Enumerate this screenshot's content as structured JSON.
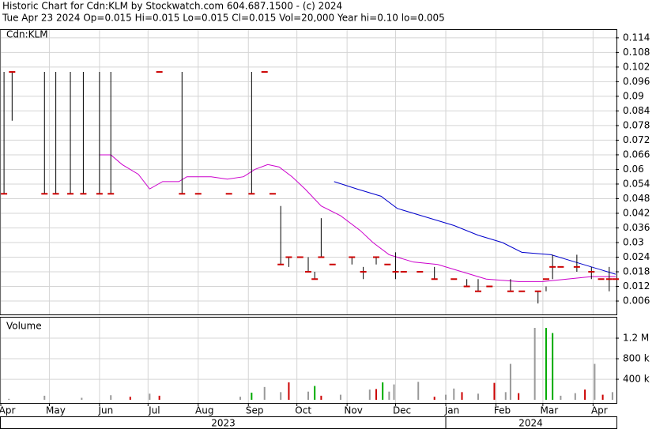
{
  "header": {
    "title": "Historic Chart for Cdn:KLM by Stockwatch.com 604.687.1500 - (c) 2024",
    "quote": "Tue Apr 23 2024  Op=0.015  Hi=0.015  Lo=0.015  Cl=0.015  Vol=20,000  Year hi=0.10  lo=0.005"
  },
  "chart_data": [
    {
      "type": "ohlc",
      "label": "Cdn:KLM",
      "color": "#cc0000",
      "bar_color": "#000000",
      "xlim": [
        0,
        380
      ],
      "ylim": [
        0.0005,
        0.1172
      ],
      "yticks": [
        0.114,
        0.108,
        0.102,
        0.096,
        0.09,
        0.084,
        0.078,
        0.072,
        0.066,
        0.06,
        0.054,
        0.048,
        0.042,
        0.036,
        0.03,
        0.024,
        0.018,
        0.012,
        0.006
      ],
      "x": [
        2,
        7,
        27,
        34,
        43,
        51,
        61,
        68,
        98,
        112,
        122,
        141,
        155,
        163,
        168,
        173,
        178,
        185,
        190,
        194,
        198,
        205,
        217,
        224,
        232,
        239,
        244,
        249,
        259,
        268,
        280,
        288,
        295,
        302,
        315,
        322,
        332,
        337,
        341,
        346,
        356,
        365,
        371,
        376,
        380
      ],
      "high": [
        0.1,
        0.1,
        0.1,
        0.1,
        0.1,
        0.1,
        0.1,
        0.1,
        0.1,
        0.1,
        0.05,
        0.05,
        0.1,
        0.1,
        0.05,
        0.045,
        0.024,
        0.024,
        0.024,
        0.018,
        0.04,
        0.021,
        0.024,
        0.02,
        0.024,
        0.021,
        0.026,
        0.018,
        0.018,
        0.02,
        0.015,
        0.015,
        0.015,
        0.012,
        0.015,
        0.01,
        0.01,
        0.012,
        0.025,
        0.02,
        0.025,
        0.02,
        0.015,
        0.02,
        0.015
      ],
      "low": [
        0.05,
        0.08,
        0.05,
        0.05,
        0.05,
        0.05,
        0.05,
        0.05,
        0.1,
        0.05,
        0.05,
        0.05,
        0.05,
        0.1,
        0.05,
        0.021,
        0.02,
        0.024,
        0.018,
        0.015,
        0.024,
        0.021,
        0.021,
        0.015,
        0.021,
        0.021,
        0.015,
        0.018,
        0.018,
        0.015,
        0.015,
        0.012,
        0.01,
        0.012,
        0.01,
        0.01,
        0.005,
        0.01,
        0.015,
        0.02,
        0.018,
        0.015,
        0.015,
        0.01,
        0.015
      ],
      "close": [
        0.05,
        0.1,
        0.05,
        0.05,
        0.05,
        0.05,
        0.05,
        0.05,
        0.1,
        0.05,
        0.05,
        0.05,
        0.05,
        0.1,
        0.05,
        0.021,
        0.024,
        0.024,
        0.018,
        0.015,
        0.024,
        0.021,
        0.024,
        0.018,
        0.024,
        0.021,
        0.018,
        0.018,
        0.018,
        0.015,
        0.015,
        0.012,
        0.01,
        0.012,
        0.01,
        0.01,
        0.01,
        0.015,
        0.02,
        0.02,
        0.02,
        0.018,
        0.015,
        0.015,
        0.015
      ],
      "moving_averages": [
        {
          "color": "#cc00cc",
          "x": [
            61,
            68,
            75,
            85,
            92,
            100,
            110,
            115,
            130,
            140,
            150,
            157,
            165,
            172,
            180,
            188,
            198,
            210,
            222,
            230,
            240,
            255,
            270,
            285,
            300,
            320,
            335,
            350,
            365,
            380
          ],
          "values": [
            0.066,
            0.066,
            0.062,
            0.058,
            0.052,
            0.055,
            0.055,
            0.057,
            0.057,
            0.056,
            0.057,
            0.06,
            0.062,
            0.061,
            0.057,
            0.052,
            0.045,
            0.041,
            0.035,
            0.03,
            0.025,
            0.022,
            0.021,
            0.018,
            0.015,
            0.014,
            0.014,
            0.015,
            0.016,
            0.016
          ]
        },
        {
          "color": "#0000cc",
          "x": [
            206,
            220,
            235,
            245,
            265,
            280,
            295,
            310,
            322,
            340,
            355,
            370,
            380
          ],
          "values": [
            0.055,
            0.052,
            0.049,
            0.044,
            0.04,
            0.037,
            0.033,
            0.03,
            0.026,
            0.025,
            0.022,
            0.019,
            0.017
          ]
        }
      ]
    },
    {
      "type": "bar",
      "label": "Volume",
      "xlim": [
        0,
        380
      ],
      "ylim": [
        -60000,
        1600000
      ],
      "yticks": [
        {
          "value": 400000,
          "label": "400 k"
        },
        {
          "value": 800000,
          "label": "800 k"
        },
        {
          "value": 1200000,
          "label": "1.2 M"
        }
      ],
      "xticks": [
        {
          "value": 0,
          "label": "Apr"
        },
        {
          "value": 30,
          "label": "May"
        },
        {
          "value": 61,
          "label": "Jun"
        },
        {
          "value": 91,
          "label": "Jul"
        },
        {
          "value": 122,
          "label": "Aug"
        },
        {
          "value": 153,
          "label": "Sep"
        },
        {
          "value": 183,
          "label": "Oct"
        },
        {
          "value": 214,
          "label": "Nov"
        },
        {
          "value": 244,
          "label": "Dec"
        },
        {
          "value": 275,
          "label": "Jan"
        },
        {
          "value": 306,
          "label": "Feb"
        },
        {
          "value": 335,
          "label": "Mar"
        },
        {
          "value": 366,
          "label": "Apr"
        }
      ],
      "years": [
        {
          "label": "2023",
          "start": 0
        },
        {
          "label": "2024",
          "start": 275
        }
      ],
      "x": [
        5,
        27,
        50,
        68,
        80,
        92,
        98,
        148,
        155,
        163,
        173,
        178,
        190,
        194,
        198,
        210,
        228,
        232,
        236,
        240,
        243,
        258,
        268,
        275,
        280,
        285,
        295,
        305,
        312,
        315,
        320,
        330,
        337,
        341,
        346,
        355,
        361,
        367,
        372,
        378
      ],
      "values": [
        20000,
        80000,
        40000,
        90000,
        60000,
        120000,
        80000,
        60000,
        140000,
        250000,
        150000,
        340000,
        160000,
        270000,
        80000,
        100000,
        200000,
        210000,
        340000,
        160000,
        300000,
        350000,
        60000,
        100000,
        220000,
        150000,
        120000,
        330000,
        150000,
        700000,
        130000,
        1400000,
        1400000,
        1300000,
        80000,
        130000,
        200000,
        700000,
        100000,
        150000
      ],
      "colors": [
        "#999999",
        "#999999",
        "#999999",
        "#999999",
        "#cc0000",
        "#999999",
        "#cc0000",
        "#999999",
        "#00aa00",
        "#999999",
        "#999999",
        "#cc0000",
        "#999999",
        "#00aa00",
        "#cc0000",
        "#999999",
        "#999999",
        "#cc0000",
        "#00aa00",
        "#999999",
        "#999999",
        "#999999",
        "#cc0000",
        "#999999",
        "#999999",
        "#cc0000",
        "#999999",
        "#cc0000",
        "#999999",
        "#999999",
        "#cc0000",
        "#999999",
        "#00aa00",
        "#00aa00",
        "#999999",
        "#999999",
        "#cc0000",
        "#999999",
        "#cc0000",
        "#999999"
      ]
    }
  ]
}
